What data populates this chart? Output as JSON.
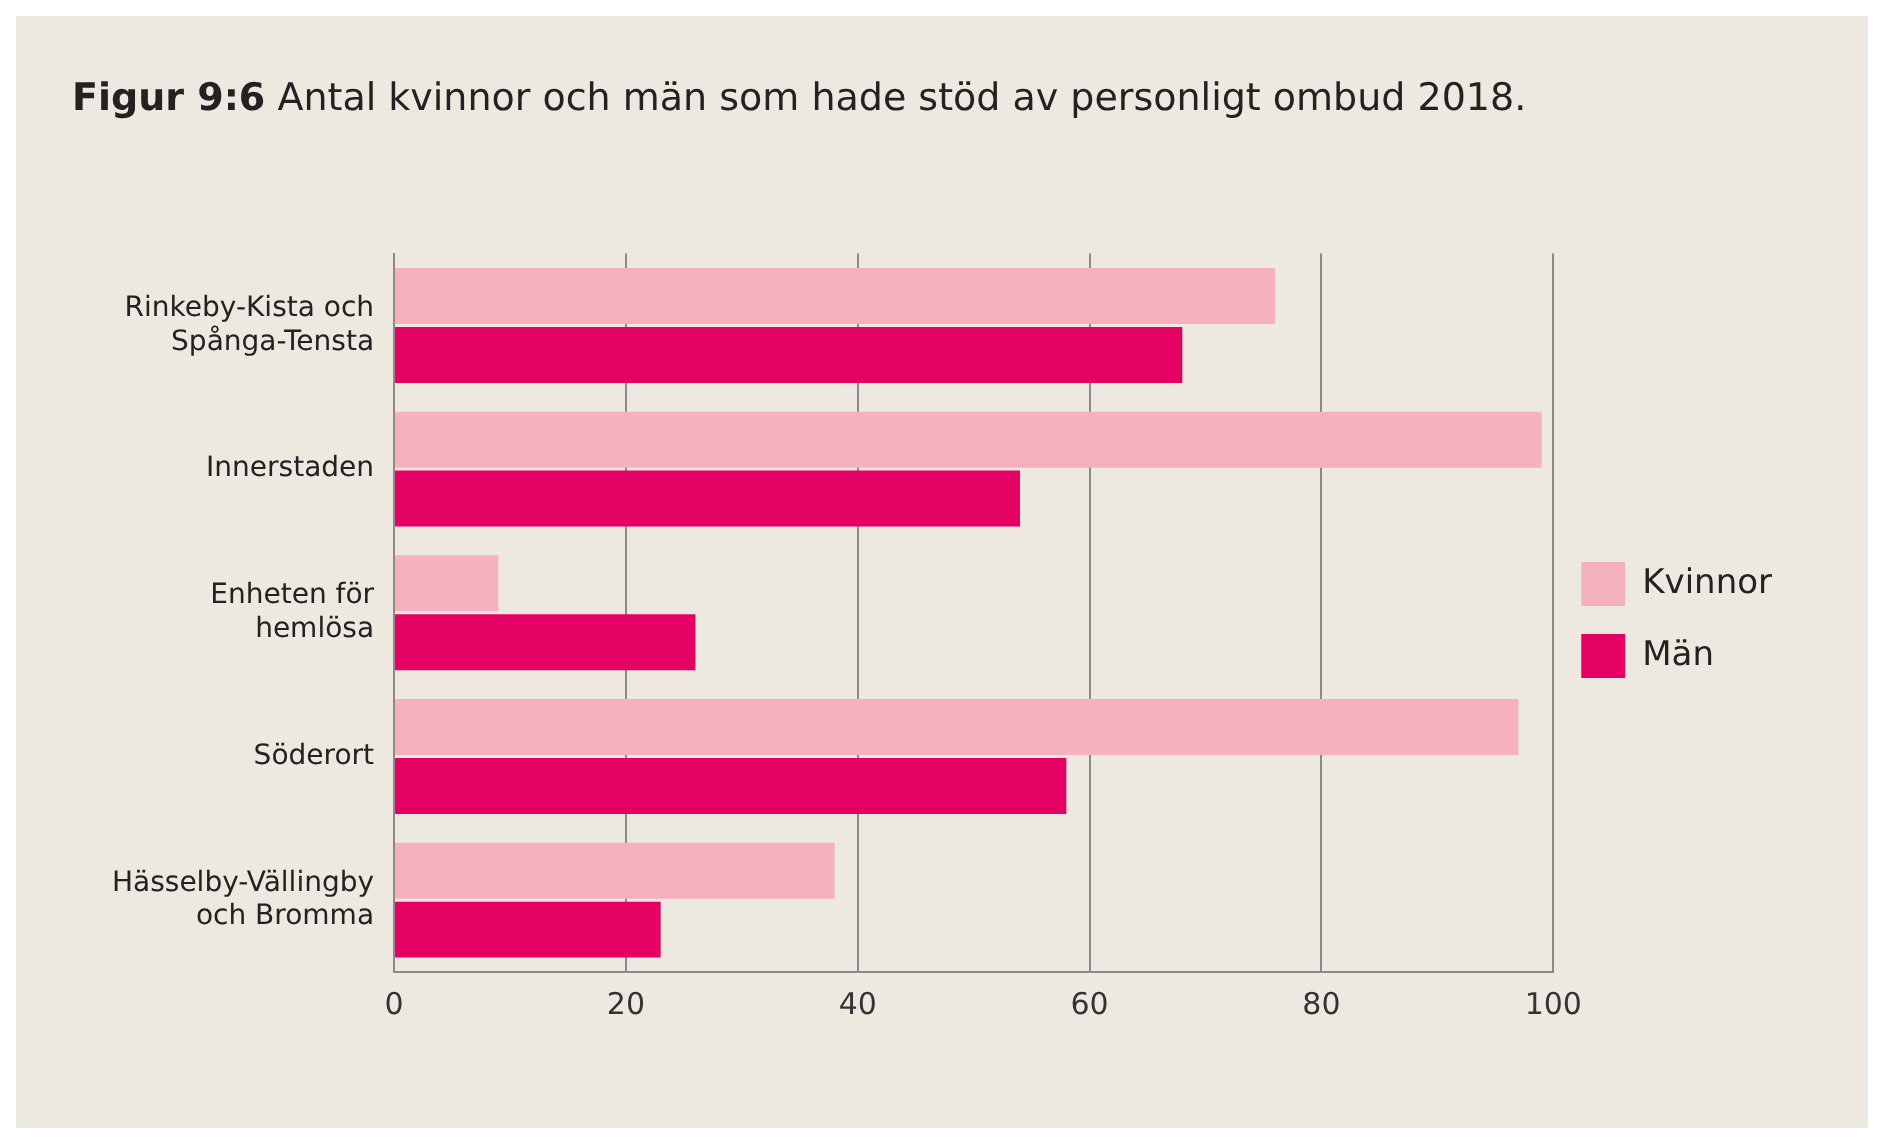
{
  "chart_data": {
    "type": "bar",
    "orientation": "horizontal",
    "title": "Figur 9:6 Antal kvinnor och män som hade stöd av personligt ombud 2018.",
    "categories": [
      "Rinkeby-Kista och Spånga-Tensta",
      "Innerstaden",
      "Enheten för hemlösa",
      "Söderort",
      "Hässelby-Vällingby och Bromma"
    ],
    "series": [
      {
        "name": "Kvinnor",
        "color": "#f5b1c0",
        "values": [
          76,
          99,
          9,
          97,
          38
        ]
      },
      {
        "name": "Män",
        "color": "#e50064",
        "values": [
          68,
          54,
          26,
          58,
          23
        ]
      }
    ],
    "xlim": [
      0,
      100
    ],
    "xticks": [
      0,
      20,
      40,
      60,
      80,
      100
    ],
    "grid": "x",
    "legend": "right"
  }
}
